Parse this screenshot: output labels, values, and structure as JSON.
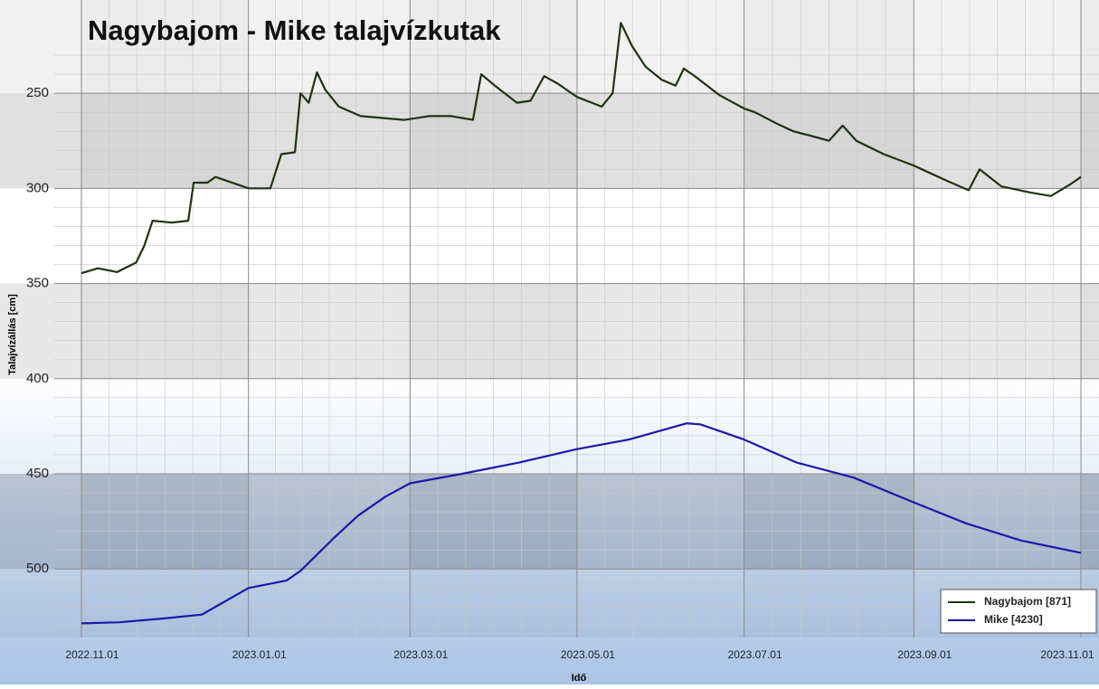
{
  "chart_data": {
    "type": "line",
    "title": "Nagybajom - Mike talajvízkutak",
    "x_label": "Idő",
    "y_label": "Talajvízállás [cm]",
    "y_inverted": true,
    "grid": true,
    "legend": "lower right",
    "xlim": [
      "2022.11.01",
      "2023.11.01"
    ],
    "xticks": [
      "2022.11.01",
      "2023.01.01",
      "2023.03.01",
      "2023.05.01",
      "2023.07.01",
      "2023.09.01",
      "2023.11.01"
    ],
    "ylim": [
      201,
      536
    ],
    "yticks": [
      250,
      300,
      350,
      400,
      450,
      500
    ],
    "series": [
      {
        "name": "Nagybajom [871]",
        "color": "#1c3510",
        "x": [
          "2022.11.01",
          "2022.11.07",
          "2022.11.14",
          "2022.11.21",
          "2022.11.24",
          "2022.11.27",
          "2022.12.04",
          "2022.12.10",
          "2022.12.12",
          "2022.12.17",
          "2022.12.20",
          "2022.12.28",
          "2023.01.01",
          "2023.01.09",
          "2023.01.13",
          "2023.01.18",
          "2023.01.20",
          "2023.01.23",
          "2023.01.26",
          "2023.01.29",
          "2023.02.03",
          "2023.02.11",
          "2023.02.27",
          "2023.03.08",
          "2023.03.16",
          "2023.03.24",
          "2023.03.27",
          "2023.04.01",
          "2023.04.09",
          "2023.04.14",
          "2023.04.19",
          "2023.04.24",
          "2023.05.01",
          "2023.05.10",
          "2023.05.14",
          "2023.05.17",
          "2023.05.21",
          "2023.05.26",
          "2023.06.01",
          "2023.06.06",
          "2023.06.09",
          "2023.06.13",
          "2023.06.22",
          "2023.07.01",
          "2023.07.05",
          "2023.07.13",
          "2023.07.19",
          "2023.07.27",
          "2023.08.01",
          "2023.08.06",
          "2023.08.11",
          "2023.08.21",
          "2023.09.01",
          "2023.09.13",
          "2023.09.21",
          "2023.09.25",
          "2023.10.03",
          "2023.10.13",
          "2023.10.21",
          "2023.10.28",
          "2023.11.01"
        ],
        "values": [
          344.6,
          342,
          344,
          339,
          330,
          317,
          318,
          317,
          297,
          297,
          294,
          298,
          300,
          300,
          282,
          281,
          250,
          255,
          239,
          248,
          257,
          262,
          264,
          262,
          262,
          264,
          240,
          246,
          255,
          254,
          241,
          245,
          252,
          257,
          250,
          213,
          225,
          236,
          243,
          246,
          237,
          241,
          251,
          258,
          260,
          266,
          270,
          273,
          275,
          267,
          275,
          282,
          288,
          296,
          301,
          290,
          299,
          302,
          304,
          298,
          294
        ]
      },
      {
        "name": "Mike [4230]",
        "color": "#1a1aa8",
        "x": [
          "2022.11.01",
          "2022.11.15",
          "2022.12.01",
          "2022.12.15",
          "2023.01.01",
          "2023.01.15",
          "2023.01.20",
          "2023.02.01",
          "2023.02.10",
          "2023.02.20",
          "2023.03.01",
          "2023.03.20",
          "2023.04.10",
          "2023.05.01",
          "2023.05.20",
          "2023.06.10",
          "2023.06.15",
          "2023.07.01",
          "2023.07.20",
          "2023.08.10",
          "2023.09.01",
          "2023.09.20",
          "2023.10.10",
          "2023.11.01"
        ],
        "values": [
          528.6,
          528,
          526,
          524,
          510,
          506,
          501,
          484,
          472,
          462,
          455,
          450,
          444,
          437,
          432,
          423.5,
          424,
          432,
          444,
          452,
          465,
          476,
          485,
          491.5
        ]
      }
    ]
  }
}
